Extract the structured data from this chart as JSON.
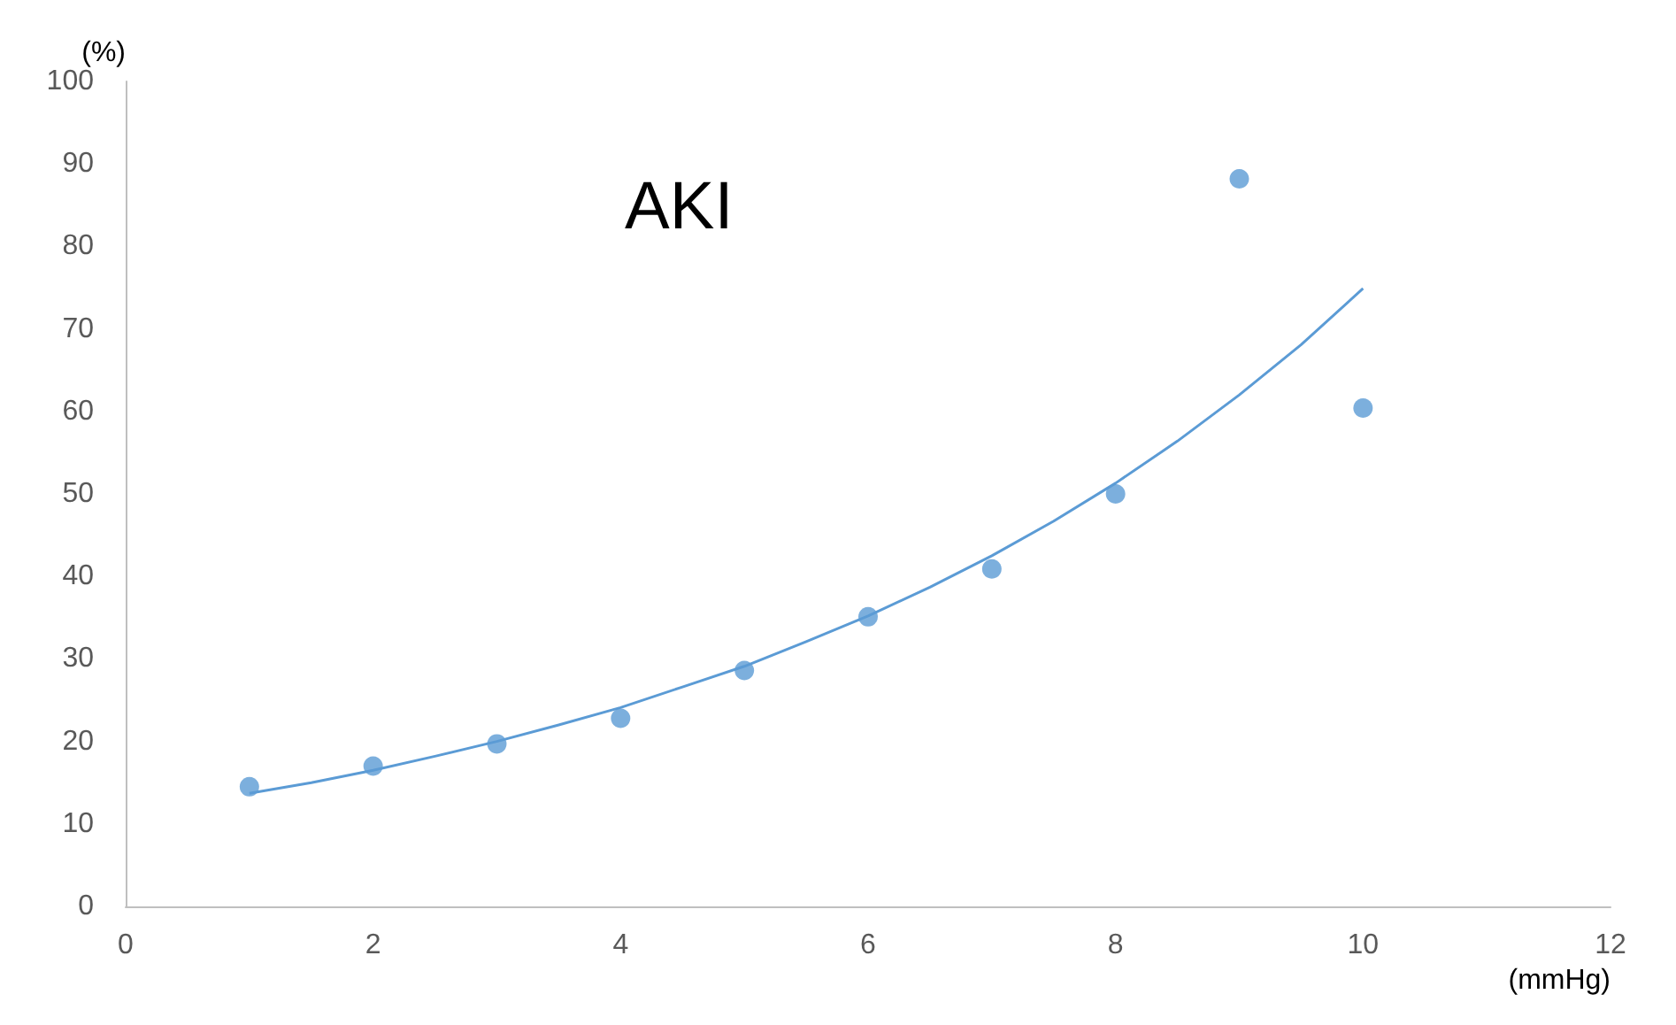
{
  "chart_data": {
    "type": "scatter",
    "title": "AKI",
    "xlabel": "(mmHg)",
    "ylabel": "(%)",
    "x": [
      1,
      2,
      3,
      4,
      5,
      6,
      7,
      8,
      9,
      10
    ],
    "series": [
      {
        "color": "#5b9bd5",
        "values": [
          14.5,
          17.0,
          19.7,
          22.8,
          28.6,
          35.1,
          40.9,
          50.0,
          88.2,
          60.4
        ]
      },
      {
        "type": "line",
        "color": "#5b9bd5",
        "marker": "none",
        "x": [
          1,
          1.5,
          2,
          2.5,
          3,
          3.5,
          4,
          4.5,
          5,
          5.5,
          6,
          6.5,
          7,
          7.5,
          8,
          8.5,
          9,
          9.5,
          10
        ],
        "values": [
          13.7,
          15.0,
          16.5,
          18.2,
          20.0,
          22.0,
          24.1,
          26.6,
          29.1,
          32.1,
          35.2,
          38.7,
          42.5,
          46.7,
          51.3,
          56.4,
          62.0,
          68.1,
          74.9
        ]
      }
    ],
    "xlim": [
      0,
      12
    ],
    "xticks": [
      0,
      2,
      4,
      6,
      8,
      10,
      12
    ],
    "ylim": [
      0,
      100
    ],
    "yticks": [
      0,
      10,
      20,
      30,
      40,
      50,
      60,
      70,
      80,
      90,
      100
    ],
    "grid": false,
    "marker": "circle"
  }
}
